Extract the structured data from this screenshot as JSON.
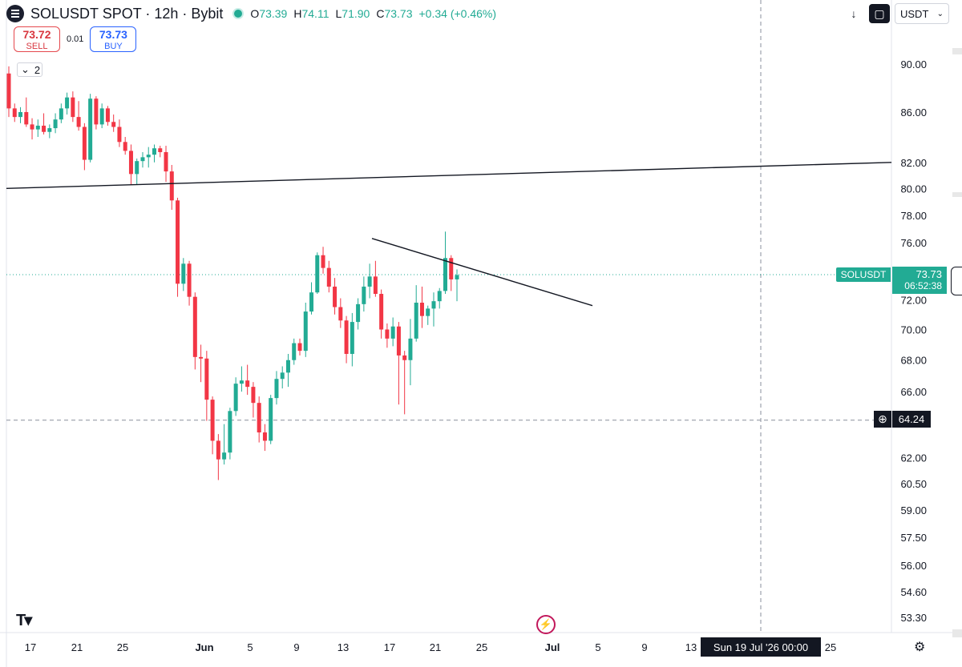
{
  "header": {
    "title": "SOLUSDT SPOT · 12h · Bybit",
    "open_label": "O",
    "open": "73.39",
    "high_label": "H",
    "high": "74.11",
    "low_label": "L",
    "low": "71.90",
    "close_label": "C",
    "close": "73.73",
    "change": "+0.34 (+0.46%)"
  },
  "trade": {
    "sell_price": "73.72",
    "sell_label": "SELL",
    "spread": "0.01",
    "buy_price": "73.73",
    "buy_label": "BUY"
  },
  "legend_toggle": {
    "count": "2"
  },
  "toolbar": {
    "currency": "USDT"
  },
  "price_labels": {
    "symbol": "SOLUSDT",
    "last_price": "73.73",
    "countdown": "06:52:38",
    "crosshair_price": "64.24",
    "crosshair_time": "Sun 19 Jul '26   00:00"
  },
  "colors": {
    "up": "#22ab94",
    "down": "#f23645",
    "accent": "#2962ff"
  },
  "chart_data": {
    "type": "candlestick",
    "title": "SOLUSDT SPOT · 12h · Bybit",
    "y_axis": {
      "scale": "log",
      "range": [
        52.5,
        93.0
      ],
      "ticks": [
        "90.00",
        "86.00",
        "82.00",
        "80.00",
        "78.00",
        "76.00",
        "72.00",
        "70.00",
        "68.00",
        "66.00",
        "62.00",
        "60.50",
        "59.00",
        "57.50",
        "56.00",
        "54.60",
        "53.30"
      ]
    },
    "x_axis": {
      "ticks": [
        "17",
        "21",
        "25",
        "Jun",
        "5",
        "9",
        "13",
        "17",
        "21",
        "25",
        "Jul",
        "5",
        "9",
        "13",
        "25"
      ]
    },
    "candles": [
      [
        89.2,
        89.8,
        85.6,
        86.3
      ],
      [
        86.3,
        86.7,
        85.2,
        85.6
      ],
      [
        85.6,
        86.4,
        85.1,
        86.0
      ],
      [
        86.0,
        87.2,
        84.8,
        85.0
      ],
      [
        85.0,
        85.5,
        83.8,
        84.6
      ],
      [
        84.6,
        85.4,
        84.0,
        84.9
      ],
      [
        84.9,
        85.9,
        84.2,
        84.4
      ],
      [
        84.4,
        85.0,
        83.9,
        84.7
      ],
      [
        84.7,
        85.9,
        84.3,
        85.4
      ],
      [
        85.4,
        86.7,
        85.1,
        86.3
      ],
      [
        86.3,
        87.6,
        85.8,
        87.2
      ],
      [
        87.2,
        87.7,
        85.2,
        85.6
      ],
      [
        85.6,
        86.9,
        84.5,
        84.8
      ],
      [
        84.8,
        85.1,
        81.4,
        82.2
      ],
      [
        82.2,
        87.5,
        82.0,
        87.1
      ],
      [
        87.1,
        87.3,
        84.6,
        85.0
      ],
      [
        85.0,
        86.7,
        84.7,
        86.3
      ],
      [
        86.3,
        86.5,
        84.9,
        85.2
      ],
      [
        85.2,
        85.8,
        84.4,
        84.8
      ],
      [
        84.8,
        85.4,
        83.2,
        83.6
      ],
      [
        83.6,
        84.0,
        82.6,
        82.9
      ],
      [
        82.9,
        83.4,
        80.3,
        81.1
      ],
      [
        81.1,
        82.3,
        80.3,
        82.1
      ],
      [
        82.1,
        82.8,
        81.6,
        82.4
      ],
      [
        82.4,
        83.2,
        81.6,
        82.6
      ],
      [
        82.6,
        83.4,
        82.0,
        83.1
      ],
      [
        83.1,
        83.3,
        82.4,
        82.8
      ],
      [
        82.8,
        83.3,
        80.5,
        81.3
      ],
      [
        81.3,
        81.8,
        78.4,
        79.1
      ],
      [
        79.1,
        79.3,
        72.2,
        73.1
      ],
      [
        73.1,
        74.9,
        72.6,
        74.5
      ],
      [
        74.5,
        74.7,
        71.6,
        72.2
      ],
      [
        72.2,
        72.5,
        67.4,
        68.2
      ],
      [
        68.2,
        69.0,
        66.6,
        68.1
      ],
      [
        68.1,
        68.6,
        64.2,
        65.5
      ],
      [
        65.5,
        65.7,
        62.2,
        63.0
      ],
      [
        63.0,
        63.4,
        60.7,
        61.9
      ],
      [
        61.9,
        64.0,
        61.6,
        62.3
      ],
      [
        62.3,
        65.0,
        61.9,
        64.8
      ],
      [
        64.8,
        66.9,
        64.5,
        66.5
      ],
      [
        66.5,
        67.6,
        66.0,
        66.7
      ],
      [
        66.7,
        67.7,
        65.8,
        66.3
      ],
      [
        66.3,
        66.6,
        64.4,
        65.3
      ],
      [
        65.3,
        65.7,
        62.9,
        63.5
      ],
      [
        63.5,
        64.0,
        62.4,
        63.0
      ],
      [
        63.0,
        65.8,
        62.8,
        65.6
      ],
      [
        65.6,
        67.3,
        65.2,
        66.8
      ],
      [
        66.8,
        67.6,
        66.2,
        67.2
      ],
      [
        67.2,
        68.4,
        66.3,
        68.0
      ],
      [
        68.0,
        69.4,
        67.7,
        69.1
      ],
      [
        69.1,
        69.4,
        68.3,
        68.6
      ],
      [
        68.6,
        71.8,
        68.2,
        71.2
      ],
      [
        71.2,
        73.2,
        71.0,
        72.5
      ],
      [
        72.5,
        75.3,
        72.4,
        75.1
      ],
      [
        75.1,
        75.7,
        73.8,
        74.2
      ],
      [
        74.2,
        74.7,
        72.5,
        72.9
      ],
      [
        72.9,
        73.5,
        71.0,
        71.5
      ],
      [
        71.5,
        72.1,
        70.1,
        70.6
      ],
      [
        70.6,
        70.9,
        67.8,
        68.4
      ],
      [
        68.4,
        71.1,
        67.6,
        70.5
      ],
      [
        70.5,
        72.1,
        70.0,
        71.7
      ],
      [
        71.7,
        73.6,
        71.2,
        72.9
      ],
      [
        72.9,
        74.5,
        72.1,
        73.6
      ],
      [
        73.6,
        74.7,
        72.2,
        72.4
      ],
      [
        72.4,
        72.7,
        69.4,
        70.0
      ],
      [
        70.0,
        70.4,
        68.8,
        69.4
      ],
      [
        69.4,
        70.8,
        68.9,
        70.2
      ],
      [
        70.2,
        70.5,
        65.2,
        68.3
      ],
      [
        68.3,
        68.6,
        64.6,
        68.0
      ],
      [
        68.0,
        70.7,
        66.4,
        69.4
      ],
      [
        69.4,
        73.0,
        69.2,
        71.8
      ],
      [
        71.8,
        72.9,
        70.1,
        70.9
      ],
      [
        70.9,
        71.6,
        70.3,
        71.4
      ],
      [
        71.4,
        72.5,
        70.2,
        71.9
      ],
      [
        71.9,
        72.8,
        71.4,
        72.6
      ],
      [
        72.6,
        76.8,
        72.4,
        74.9
      ],
      [
        74.9,
        75.1,
        72.6,
        73.4
      ],
      [
        73.4,
        74.1,
        71.9,
        73.7
      ]
    ],
    "horizontal_levels": [
      82.0
    ],
    "trendlines": [
      {
        "from": [
          "17 May",
          80.0
        ],
        "to": [
          "19 Jul",
          82.0
        ]
      },
      {
        "from": [
          "15 Jun",
          76.3
        ],
        "to": [
          "1 Jul",
          71.6
        ]
      }
    ],
    "last_price": 73.73,
    "crosshair": {
      "price": 64.24,
      "time": "Sun 19 Jul '26 00:00"
    }
  }
}
